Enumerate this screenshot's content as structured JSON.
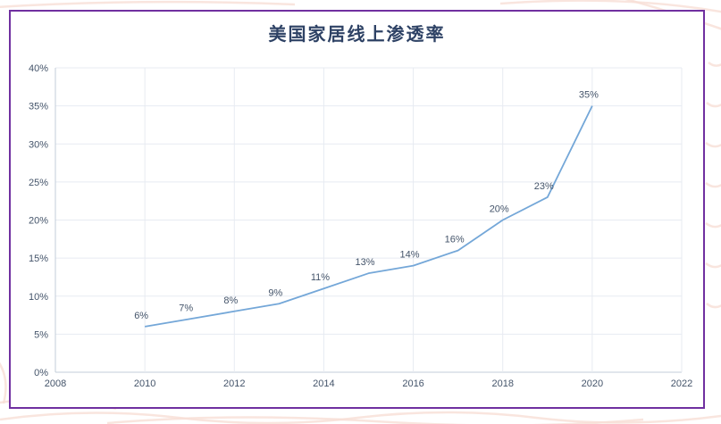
{
  "page": {
    "title": "美国家居线上渗透率"
  },
  "colors": {
    "frame": "#7030A0",
    "title": "#2E4265",
    "gridline": "#E7EBF2",
    "axis": "#C3CDD9",
    "line": "#74A7D8",
    "tick_text": "#44546A",
    "data_label_text": "#44546A",
    "decor": "#F7DFD6"
  },
  "chart_data": {
    "type": "line",
    "title": "美国家居线上渗透率",
    "x": [
      2010,
      2011,
      2012,
      2013,
      2014,
      2015,
      2016,
      2017,
      2018,
      2019,
      2020
    ],
    "values": [
      6,
      7,
      8,
      9,
      11,
      13,
      14,
      16,
      20,
      23,
      35
    ],
    "point_labels": [
      "6%",
      "7%",
      "8%",
      "9%",
      "11%",
      "13%",
      "14%",
      "16%",
      "20%",
      "23%",
      "35%"
    ],
    "xlabel": "",
    "ylabel": "",
    "xlim": [
      2008,
      2022
    ],
    "ylim": [
      0,
      40
    ],
    "xticks": [
      {
        "v": 2008,
        "label": "2008"
      },
      {
        "v": 2010,
        "label": "2010"
      },
      {
        "v": 2012,
        "label": "2012"
      },
      {
        "v": 2014,
        "label": "2014"
      },
      {
        "v": 2016,
        "label": "2016"
      },
      {
        "v": 2018,
        "label": "2018"
      },
      {
        "v": 2020,
        "label": "2020"
      },
      {
        "v": 2022,
        "label": "2022"
      }
    ],
    "yticks": [
      {
        "v": 0,
        "label": "0%"
      },
      {
        "v": 5,
        "label": "5%"
      },
      {
        "v": 10,
        "label": "10%"
      },
      {
        "v": 15,
        "label": "15%"
      },
      {
        "v": 20,
        "label": "20%"
      },
      {
        "v": 25,
        "label": "25%"
      },
      {
        "v": 30,
        "label": "30%"
      },
      {
        "v": 35,
        "label": "35%"
      },
      {
        "v": 40,
        "label": "40%"
      }
    ],
    "grid": true,
    "legend_position": "none"
  }
}
